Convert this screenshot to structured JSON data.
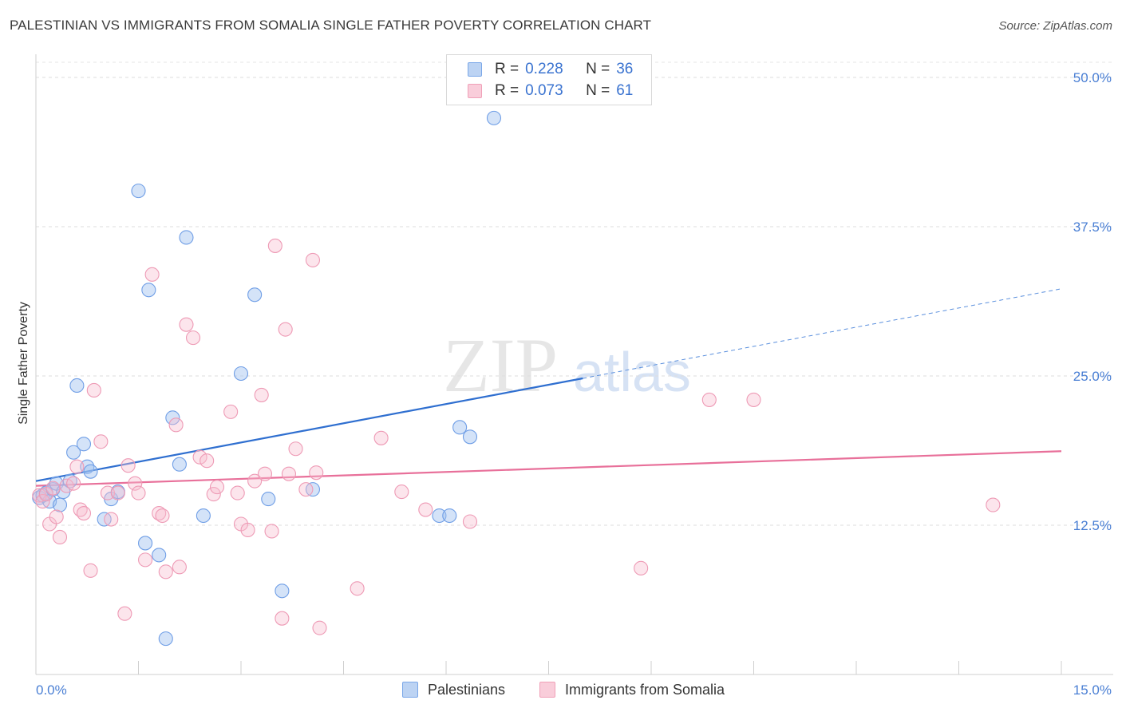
{
  "header": {
    "title": "PALESTINIAN VS IMMIGRANTS FROM SOMALIA SINGLE FATHER POVERTY CORRELATION CHART",
    "source": "Source: ZipAtlas.com"
  },
  "legend": {
    "r_label": "R =",
    "n_label": "N =",
    "rows": [
      {
        "r": "0.228",
        "n": "36",
        "color": "#7aa7e8"
      },
      {
        "r": "0.073",
        "n": "61",
        "color": "#f0a0b8"
      }
    ]
  },
  "watermark": {
    "zip": "ZIP",
    "atlas": "atlas"
  },
  "chart_data": {
    "type": "scatter",
    "title": "PALESTINIAN VS IMMIGRANTS FROM SOMALIA SINGLE FATHER POVERTY CORRELATION CHART",
    "xlabel": "",
    "ylabel": "Single Father Poverty",
    "xlim": [
      0,
      15
    ],
    "ylim": [
      0,
      50
    ],
    "x_tick_labels": [
      "0.0%",
      "15.0%"
    ],
    "y_ticks": [
      12.5,
      25.0,
      37.5,
      50.0
    ],
    "y_tick_labels": [
      "12.5%",
      "25.0%",
      "37.5%",
      "50.0%"
    ],
    "grid": true,
    "legend_position": "top-center",
    "series": [
      {
        "name": "Palestinians",
        "color": "#7aa7e8",
        "trend": {
          "x": [
            0.0,
            8.0
          ],
          "y": [
            16.2,
            24.8
          ],
          "dashed_to": [
            15.0,
            32.3
          ]
        },
        "points": [
          [
            0.05,
            14.8
          ],
          [
            0.1,
            15.0
          ],
          [
            0.15,
            15.2
          ],
          [
            0.2,
            14.5
          ],
          [
            0.25,
            15.5
          ],
          [
            0.3,
            16.0
          ],
          [
            0.55,
            18.6
          ],
          [
            0.6,
            24.2
          ],
          [
            0.7,
            19.3
          ],
          [
            0.75,
            17.4
          ],
          [
            0.8,
            17.0
          ],
          [
            1.0,
            13.0
          ],
          [
            1.1,
            14.7
          ],
          [
            1.2,
            15.3
          ],
          [
            1.5,
            40.5
          ],
          [
            1.6,
            11.0
          ],
          [
            1.65,
            32.2
          ],
          [
            1.8,
            10.0
          ],
          [
            1.9,
            3.0
          ],
          [
            2.0,
            21.5
          ],
          [
            2.1,
            17.6
          ],
          [
            2.2,
            36.6
          ],
          [
            2.45,
            13.3
          ],
          [
            3.0,
            25.2
          ],
          [
            3.2,
            31.8
          ],
          [
            3.4,
            14.7
          ],
          [
            3.6,
            7.0
          ],
          [
            4.05,
            15.5
          ],
          [
            5.9,
            13.3
          ],
          [
            6.05,
            13.3
          ],
          [
            6.2,
            20.7
          ],
          [
            6.35,
            19.9
          ],
          [
            6.7,
            46.6
          ],
          [
            0.4,
            15.3
          ],
          [
            0.5,
            16.2
          ],
          [
            0.35,
            14.2
          ]
        ]
      },
      {
        "name": "Immigrants from Somalia",
        "color": "#f0a0b8",
        "trend": {
          "x": [
            0.0,
            15.0
          ],
          "y": [
            15.8,
            18.7
          ]
        },
        "points": [
          [
            0.05,
            15.0
          ],
          [
            0.1,
            14.5
          ],
          [
            0.2,
            12.6
          ],
          [
            0.3,
            13.2
          ],
          [
            0.35,
            11.5
          ],
          [
            0.45,
            15.8
          ],
          [
            0.6,
            17.4
          ],
          [
            0.65,
            13.8
          ],
          [
            0.7,
            13.5
          ],
          [
            0.8,
            8.7
          ],
          [
            0.85,
            23.8
          ],
          [
            0.95,
            19.5
          ],
          [
            1.05,
            15.2
          ],
          [
            1.1,
            13.0
          ],
          [
            1.2,
            15.2
          ],
          [
            1.3,
            5.1
          ],
          [
            1.35,
            17.5
          ],
          [
            1.45,
            16.0
          ],
          [
            1.5,
            15.2
          ],
          [
            1.6,
            9.6
          ],
          [
            1.7,
            33.5
          ],
          [
            1.8,
            13.5
          ],
          [
            1.85,
            13.3
          ],
          [
            1.9,
            8.6
          ],
          [
            2.05,
            20.9
          ],
          [
            2.1,
            9.0
          ],
          [
            2.2,
            29.3
          ],
          [
            2.3,
            28.2
          ],
          [
            2.4,
            18.2
          ],
          [
            2.5,
            17.9
          ],
          [
            2.6,
            15.1
          ],
          [
            2.65,
            15.7
          ],
          [
            2.85,
            22.0
          ],
          [
            2.95,
            15.2
          ],
          [
            3.0,
            12.6
          ],
          [
            3.1,
            12.1
          ],
          [
            3.2,
            16.2
          ],
          [
            3.3,
            23.4
          ],
          [
            3.35,
            16.8
          ],
          [
            3.45,
            12.0
          ],
          [
            3.5,
            35.9
          ],
          [
            3.6,
            4.7
          ],
          [
            3.65,
            28.9
          ],
          [
            3.7,
            16.8
          ],
          [
            3.8,
            18.9
          ],
          [
            3.95,
            15.5
          ],
          [
            4.05,
            34.7
          ],
          [
            4.1,
            16.9
          ],
          [
            4.15,
            3.9
          ],
          [
            4.7,
            7.2
          ],
          [
            5.05,
            19.8
          ],
          [
            5.35,
            15.3
          ],
          [
            5.7,
            13.8
          ],
          [
            6.35,
            12.8
          ],
          [
            8.85,
            8.9
          ],
          [
            9.85,
            23.0
          ],
          [
            10.5,
            23.0
          ],
          [
            14.0,
            14.2
          ],
          [
            0.15,
            15.1
          ],
          [
            0.25,
            15.6
          ],
          [
            0.55,
            16.0
          ]
        ]
      }
    ]
  }
}
